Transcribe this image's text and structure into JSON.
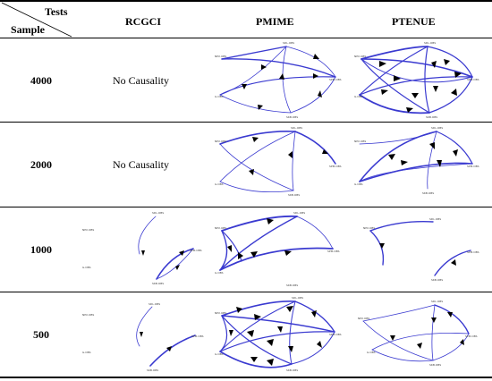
{
  "header": {
    "tests": "Tests",
    "sample": "Sample",
    "columns": [
      "RCGCI",
      "PMIME",
      "PTENUE"
    ]
  },
  "rows": [
    {
      "label": "4000",
      "rcgci_text": "No Causality"
    },
    {
      "label": "2000",
      "rcgci_text": "No Causality"
    },
    {
      "label": "1000"
    },
    {
      "label": "500"
    }
  ],
  "colors": {
    "edge": "#3a3ad0",
    "arrow": "#000000",
    "rule": "#000000"
  }
}
